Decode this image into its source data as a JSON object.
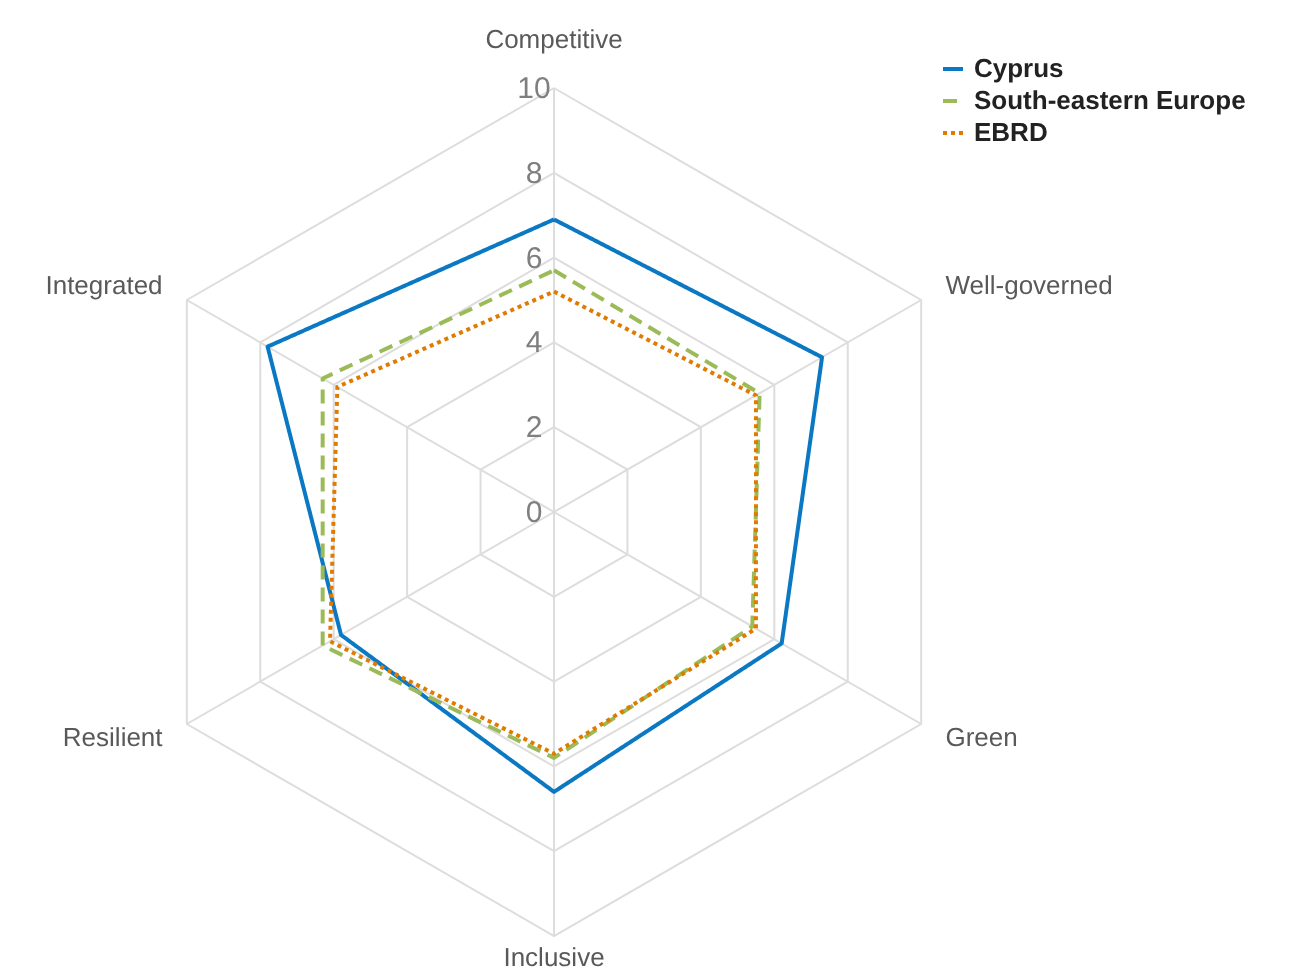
{
  "chart_data": {
    "type": "radar",
    "categories": [
      "Competitive",
      "Well-governed",
      "Green",
      "Inclusive",
      "Resilient",
      "Integrated"
    ],
    "series": [
      {
        "name": "Cyprus",
        "color": "#0a78c2",
        "line_style": "solid",
        "values": [
          6.9,
          7.3,
          6.2,
          6.6,
          5.8,
          7.8
        ]
      },
      {
        "name": "South-eastern Europe",
        "color": "#9bbb59",
        "line_style": "dashed",
        "values": [
          5.7,
          5.6,
          5.4,
          5.8,
          6.3,
          6.3
        ]
      },
      {
        "name": "EBRD",
        "color": "#e07b00",
        "line_style": "dotted",
        "values": [
          5.2,
          5.5,
          5.5,
          5.7,
          6.1,
          5.9
        ]
      }
    ],
    "ylim": [
      0,
      10
    ],
    "yticks": [
      0,
      2,
      4,
      6,
      8,
      10
    ],
    "grid": true,
    "legend": "top right",
    "marker": "none"
  }
}
